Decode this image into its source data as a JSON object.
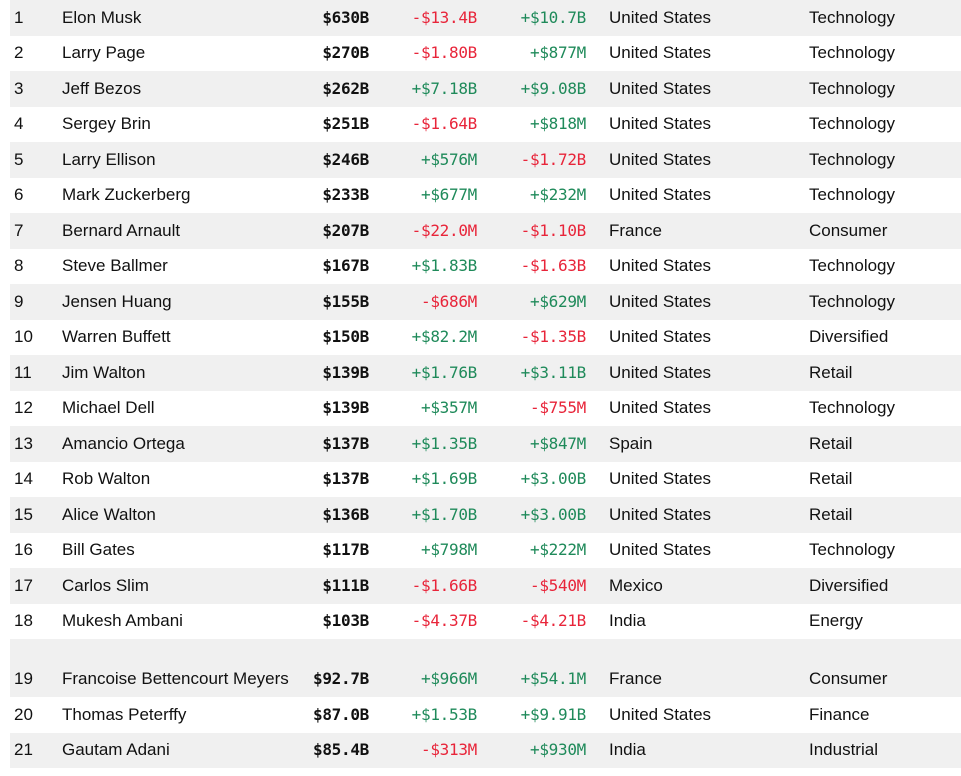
{
  "colors": {
    "positive": "#1f8a5a",
    "negative": "#e8253a",
    "row_alt": "#f0f0f0"
  },
  "rows": [
    {
      "rank": "1",
      "name": "Elon Musk",
      "net_worth": "$630B",
      "last_change": "-$13.4B",
      "ytd_change": "+$10.7B",
      "country": "United States",
      "industry": "Technology"
    },
    {
      "rank": "2",
      "name": "Larry Page",
      "net_worth": "$270B",
      "last_change": "-$1.80B",
      "ytd_change": "+$877M",
      "country": "United States",
      "industry": "Technology"
    },
    {
      "rank": "3",
      "name": "Jeff Bezos",
      "net_worth": "$262B",
      "last_change": "+$7.18B",
      "ytd_change": "+$9.08B",
      "country": "United States",
      "industry": "Technology"
    },
    {
      "rank": "4",
      "name": "Sergey Brin",
      "net_worth": "$251B",
      "last_change": "-$1.64B",
      "ytd_change": "+$818M",
      "country": "United States",
      "industry": "Technology"
    },
    {
      "rank": "5",
      "name": "Larry Ellison",
      "net_worth": "$246B",
      "last_change": "+$576M",
      "ytd_change": "-$1.72B",
      "country": "United States",
      "industry": "Technology"
    },
    {
      "rank": "6",
      "name": "Mark Zuckerberg",
      "net_worth": "$233B",
      "last_change": "+$677M",
      "ytd_change": "+$232M",
      "country": "United States",
      "industry": "Technology"
    },
    {
      "rank": "7",
      "name": "Bernard Arnault",
      "net_worth": "$207B",
      "last_change": "-$22.0M",
      "ytd_change": "-$1.10B",
      "country": "France",
      "industry": "Consumer"
    },
    {
      "rank": "8",
      "name": "Steve Ballmer",
      "net_worth": "$167B",
      "last_change": "+$1.83B",
      "ytd_change": "-$1.63B",
      "country": "United States",
      "industry": "Technology"
    },
    {
      "rank": "9",
      "name": "Jensen Huang",
      "net_worth": "$155B",
      "last_change": "-$686M",
      "ytd_change": "+$629M",
      "country": "United States",
      "industry": "Technology"
    },
    {
      "rank": "10",
      "name": "Warren Buffett",
      "net_worth": "$150B",
      "last_change": "+$82.2M",
      "ytd_change": "-$1.35B",
      "country": "United States",
      "industry": "Diversified"
    },
    {
      "rank": "11",
      "name": "Jim Walton",
      "net_worth": "$139B",
      "last_change": "+$1.76B",
      "ytd_change": "+$3.11B",
      "country": "United States",
      "industry": "Retail"
    },
    {
      "rank": "12",
      "name": "Michael Dell",
      "net_worth": "$139B",
      "last_change": "+$357M",
      "ytd_change": "-$755M",
      "country": "United States",
      "industry": "Technology"
    },
    {
      "rank": "13",
      "name": "Amancio Ortega",
      "net_worth": "$137B",
      "last_change": "+$1.35B",
      "ytd_change": "+$847M",
      "country": "Spain",
      "industry": "Retail"
    },
    {
      "rank": "14",
      "name": "Rob Walton",
      "net_worth": "$137B",
      "last_change": "+$1.69B",
      "ytd_change": "+$3.00B",
      "country": "United States",
      "industry": "Retail"
    },
    {
      "rank": "15",
      "name": "Alice Walton",
      "net_worth": "$136B",
      "last_change": "+$1.70B",
      "ytd_change": "+$3.00B",
      "country": "United States",
      "industry": "Retail"
    },
    {
      "rank": "16",
      "name": "Bill Gates",
      "net_worth": "$117B",
      "last_change": "+$798M",
      "ytd_change": "+$222M",
      "country": "United States",
      "industry": "Technology"
    },
    {
      "rank": "17",
      "name": "Carlos Slim",
      "net_worth": "$111B",
      "last_change": "-$1.66B",
      "ytd_change": "-$540M",
      "country": "Mexico",
      "industry": "Diversified"
    },
    {
      "rank": "18",
      "name": "Mukesh Ambani",
      "net_worth": "$103B",
      "last_change": "-$4.37B",
      "ytd_change": "-$4.21B",
      "country": "India",
      "industry": "Energy"
    },
    {
      "rank": "19",
      "name": "Francoise Bettencourt Meyers",
      "net_worth": "$92.7B",
      "last_change": "+$966M",
      "ytd_change": "+$54.1M",
      "country": "France",
      "industry": "Consumer"
    },
    {
      "rank": "20",
      "name": "Thomas Peterffy",
      "net_worth": "$87.0B",
      "last_change": "+$1.53B",
      "ytd_change": "+$9.91B",
      "country": "United States",
      "industry": "Finance"
    },
    {
      "rank": "21",
      "name": "Gautam Adani",
      "net_worth": "$85.4B",
      "last_change": "-$313M",
      "ytd_change": "+$930M",
      "country": "India",
      "industry": "Industrial"
    }
  ]
}
